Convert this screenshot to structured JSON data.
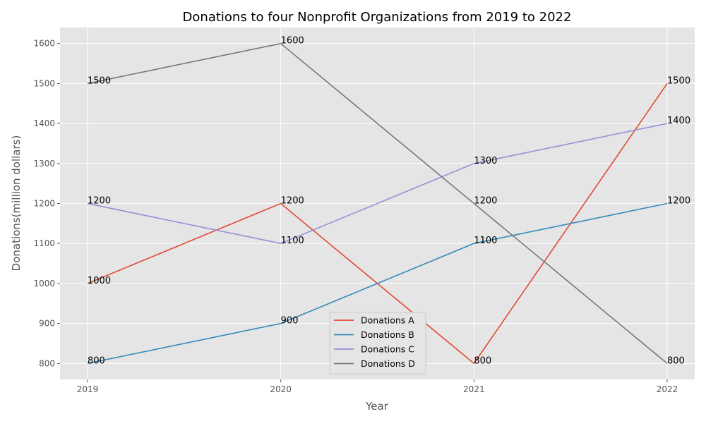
{
  "chart_data": {
    "type": "line",
    "title": "Donations to four Nonprofit Organizations from 2019 to 2022",
    "xlabel": "Year",
    "ylabel": "Donations(million dollars)",
    "x": [
      "2019",
      "2020",
      "2021",
      "2022"
    ],
    "ylim": [
      760,
      1640
    ],
    "yticks": [
      800,
      900,
      1000,
      1100,
      1200,
      1300,
      1400,
      1500,
      1600
    ],
    "grid": true,
    "legend_position": "lower center",
    "series": [
      {
        "name": "Donations A",
        "color": "#E24A33",
        "values": [
          1000,
          1200,
          800,
          1500
        ]
      },
      {
        "name": "Donations B",
        "color": "#348ABD",
        "values": [
          800,
          900,
          1100,
          1200
        ]
      },
      {
        "name": "Donations C",
        "color": "#988ED5",
        "values": [
          1200,
          1100,
          1300,
          1400
        ]
      },
      {
        "name": "Donations D",
        "color": "#777777",
        "values": [
          1500,
          1600,
          1200,
          800
        ]
      }
    ]
  }
}
